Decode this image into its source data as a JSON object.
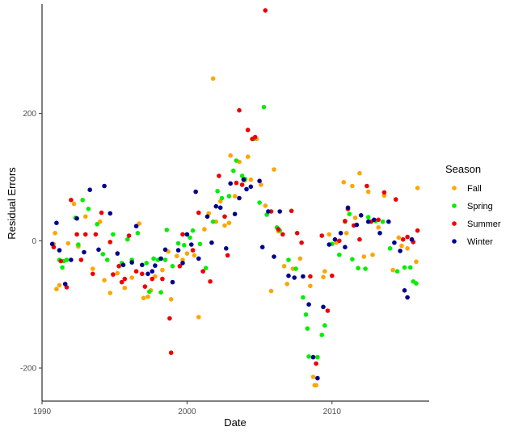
{
  "chart_data": {
    "type": "scatter",
    "title": "",
    "xlabel": "Date",
    "ylabel": "Residual Errors",
    "xlim": [
      1990.0,
      2016.7
    ],
    "ylim": [
      -252,
      372
    ],
    "x_ticks": [
      1990,
      2000,
      2010
    ],
    "y_ticks": [
      -200,
      0,
      200
    ],
    "grid": false,
    "legend": {
      "title": "Season",
      "placement": "right"
    },
    "series": [
      {
        "name": "Fall",
        "color": "#FFA500",
        "points": [
          [
            1990.8,
            -5
          ],
          [
            1990.9,
            12
          ],
          [
            1991.0,
            -76
          ],
          [
            1991.2,
            -70
          ],
          [
            1991.8,
            -4
          ],
          [
            1992.2,
            58
          ],
          [
            1992.5,
            -9
          ],
          [
            1993.0,
            38
          ],
          [
            1993.5,
            -44
          ],
          [
            1994.0,
            30
          ],
          [
            1994.3,
            -62
          ],
          [
            1994.7,
            -82
          ],
          [
            1995.2,
            -51
          ],
          [
            1995.7,
            -74
          ],
          [
            1996.2,
            -58
          ],
          [
            1996.7,
            27
          ],
          [
            1997.0,
            -90
          ],
          [
            1997.3,
            -88
          ],
          [
            1997.5,
            -78
          ],
          [
            1997.8,
            -56
          ],
          [
            1998.3,
            -46
          ],
          [
            1998.7,
            -17
          ],
          [
            1998.9,
            -92
          ],
          [
            1999.3,
            -24
          ],
          [
            1999.7,
            -30
          ],
          [
            2000.0,
            -20
          ],
          [
            2000.5,
            -23
          ],
          [
            2000.8,
            -120
          ],
          [
            2001.2,
            18
          ],
          [
            2001.5,
            43
          ],
          [
            2001.8,
            255
          ],
          [
            2002.0,
            30
          ],
          [
            2002.3,
            62
          ],
          [
            2002.6,
            24
          ],
          [
            2002.9,
            28
          ],
          [
            2003.0,
            134
          ],
          [
            2003.3,
            70
          ],
          [
            2003.6,
            124
          ],
          [
            2004.0,
            95
          ],
          [
            2004.2,
            132
          ],
          [
            2004.4,
            96
          ],
          [
            2004.8,
            160
          ],
          [
            2005.1,
            88
          ],
          [
            2005.4,
            55
          ],
          [
            2005.8,
            -79
          ],
          [
            2006.0,
            112
          ],
          [
            2006.3,
            15
          ],
          [
            2006.7,
            -40
          ],
          [
            2006.9,
            -68
          ],
          [
            2007.3,
            -44
          ],
          [
            2007.8,
            -28
          ],
          [
            2008.5,
            -71
          ],
          [
            2008.7,
            -214
          ],
          [
            2008.8,
            -227
          ],
          [
            2008.9,
            -227
          ],
          [
            2009.4,
            -57
          ],
          [
            2009.5,
            -48
          ],
          [
            2009.8,
            10
          ],
          [
            2010.3,
            -3
          ],
          [
            2010.8,
            92
          ],
          [
            2011.0,
            12
          ],
          [
            2011.4,
            86
          ],
          [
            2011.6,
            36
          ],
          [
            2011.9,
            106
          ],
          [
            2012.2,
            -25
          ],
          [
            2012.5,
            77
          ],
          [
            2012.8,
            -22
          ],
          [
            2013.2,
            21
          ],
          [
            2013.6,
            71
          ],
          [
            2014.2,
            -46
          ],
          [
            2014.6,
            5
          ],
          [
            2014.8,
            -8
          ],
          [
            2015.2,
            -12
          ],
          [
            2015.5,
            2
          ],
          [
            2015.8,
            -33
          ],
          [
            2015.9,
            83
          ]
        ]
      },
      {
        "name": "Spring",
        "color": "#00EE00",
        "points": [
          [
            1991.2,
            -30
          ],
          [
            1991.4,
            -42
          ],
          [
            1991.5,
            -32
          ],
          [
            1991.7,
            -30
          ],
          [
            1992.3,
            36
          ],
          [
            1992.5,
            -6
          ],
          [
            1992.8,
            64
          ],
          [
            1993.2,
            50
          ],
          [
            1993.8,
            26
          ],
          [
            1994.2,
            -21
          ],
          [
            1994.5,
            -30
          ],
          [
            1994.9,
            10
          ],
          [
            1995.5,
            -35
          ],
          [
            1995.9,
            2
          ],
          [
            1996.2,
            -30
          ],
          [
            1996.6,
            12
          ],
          [
            1997.2,
            -35
          ],
          [
            1997.4,
            -80
          ],
          [
            1997.7,
            -28
          ],
          [
            1998.0,
            -30
          ],
          [
            1998.2,
            -81
          ],
          [
            1998.5,
            -30
          ],
          [
            1998.6,
            17
          ],
          [
            1999.0,
            -40
          ],
          [
            1999.4,
            -4
          ],
          [
            1999.8,
            -7
          ],
          [
            2000.2,
            5
          ],
          [
            2000.4,
            16
          ],
          [
            2000.9,
            -5
          ],
          [
            2001.3,
            -43
          ],
          [
            2001.8,
            30
          ],
          [
            2002.1,
            78
          ],
          [
            2002.4,
            67
          ],
          [
            2002.9,
            70
          ],
          [
            2003.2,
            110
          ],
          [
            2003.4,
            126
          ],
          [
            2003.8,
            102
          ],
          [
            2004.0,
            97
          ],
          [
            2004.6,
            160
          ],
          [
            2005.0,
            60
          ],
          [
            2005.3,
            210
          ],
          [
            2005.5,
            41
          ],
          [
            2006.2,
            21
          ],
          [
            2006.4,
            16
          ],
          [
            2007.0,
            -30
          ],
          [
            2007.5,
            -44
          ],
          [
            2008.0,
            -89
          ],
          [
            2008.2,
            -116
          ],
          [
            2008.3,
            -138
          ],
          [
            2008.4,
            -182
          ],
          [
            2009.0,
            -183
          ],
          [
            2009.3,
            -148
          ],
          [
            2009.5,
            -133
          ],
          [
            2010.0,
            -5
          ],
          [
            2010.5,
            -22
          ],
          [
            2010.9,
            30
          ],
          [
            2011.2,
            42
          ],
          [
            2011.4,
            -29
          ],
          [
            2011.8,
            -43
          ],
          [
            2012.3,
            -44
          ],
          [
            2012.5,
            37
          ],
          [
            2013.0,
            31
          ],
          [
            2013.5,
            30
          ],
          [
            2014.0,
            -12
          ],
          [
            2014.5,
            -48
          ],
          [
            2015.0,
            -42
          ],
          [
            2015.4,
            -42
          ],
          [
            2015.6,
            -64
          ],
          [
            2015.8,
            -67
          ]
        ]
      },
      {
        "name": "Summer",
        "color": "#EE0000",
        "points": [
          [
            1990.8,
            -10
          ],
          [
            1991.3,
            -32
          ],
          [
            1991.7,
            -73
          ],
          [
            1992.0,
            64
          ],
          [
            1992.4,
            10
          ],
          [
            1992.7,
            -30
          ],
          [
            1993.0,
            10
          ],
          [
            1993.5,
            -52
          ],
          [
            1993.7,
            10
          ],
          [
            1994.1,
            44
          ],
          [
            1994.7,
            -2
          ],
          [
            1994.9,
            -53
          ],
          [
            1995.3,
            -40
          ],
          [
            1995.5,
            -65
          ],
          [
            1995.7,
            -60
          ],
          [
            1996.0,
            8
          ],
          [
            1996.5,
            -48
          ],
          [
            1996.9,
            -52
          ],
          [
            1997.1,
            -72
          ],
          [
            1997.6,
            -60
          ],
          [
            1998.3,
            -60
          ],
          [
            1998.8,
            -122
          ],
          [
            1998.9,
            -176
          ],
          [
            1999.5,
            -40
          ],
          [
            1999.7,
            10
          ],
          [
            2000.4,
            -15
          ],
          [
            2000.8,
            44
          ],
          [
            2001.1,
            -48
          ],
          [
            2001.6,
            -64
          ],
          [
            2002.2,
            102
          ],
          [
            2002.6,
            38
          ],
          [
            2002.8,
            -23
          ],
          [
            2003.4,
            91
          ],
          [
            2003.6,
            205
          ],
          [
            2003.8,
            88
          ],
          [
            2004.2,
            174
          ],
          [
            2004.5,
            160
          ],
          [
            2004.7,
            163
          ],
          [
            2005.4,
            362
          ],
          [
            2005.8,
            46
          ],
          [
            2006.3,
            18
          ],
          [
            2006.6,
            10
          ],
          [
            2007.2,
            47
          ],
          [
            2007.6,
            12
          ],
          [
            2007.9,
            -3
          ],
          [
            2008.5,
            -56
          ],
          [
            2008.9,
            -193
          ],
          [
            2009.3,
            8
          ],
          [
            2009.7,
            -110
          ],
          [
            2010.0,
            -55
          ],
          [
            2010.5,
            0
          ],
          [
            2010.9,
            31
          ],
          [
            2011.1,
            50
          ],
          [
            2011.5,
            24
          ],
          [
            2011.9,
            2
          ],
          [
            2012.4,
            86
          ],
          [
            2012.7,
            30
          ],
          [
            2013.2,
            33
          ],
          [
            2013.6,
            76
          ],
          [
            2014.4,
            65
          ],
          [
            2014.9,
            2
          ],
          [
            2015.2,
            6
          ],
          [
            2015.6,
            -2
          ],
          [
            2015.9,
            16
          ]
        ]
      },
      {
        "name": "Winter",
        "color": "#00008B",
        "points": [
          [
            1990.7,
            -5
          ],
          [
            1991.0,
            28
          ],
          [
            1991.2,
            -15
          ],
          [
            1991.6,
            -68
          ],
          [
            1992.0,
            -30
          ],
          [
            1992.4,
            35
          ],
          [
            1992.9,
            -18
          ],
          [
            1993.3,
            80
          ],
          [
            1993.9,
            -14
          ],
          [
            1994.3,
            86
          ],
          [
            1994.7,
            43
          ],
          [
            1995.2,
            -20
          ],
          [
            1995.6,
            -38
          ],
          [
            1996.2,
            -34
          ],
          [
            1996.5,
            23
          ],
          [
            1996.9,
            -38
          ],
          [
            1997.3,
            -52
          ],
          [
            1997.6,
            -48
          ],
          [
            1997.8,
            -39
          ],
          [
            1998.2,
            -28
          ],
          [
            1998.5,
            -14
          ],
          [
            1999.0,
            -65
          ],
          [
            1999.4,
            -15
          ],
          [
            1999.7,
            -35
          ],
          [
            2000.0,
            10
          ],
          [
            2000.3,
            -6
          ],
          [
            2000.6,
            77
          ],
          [
            2000.8,
            -28
          ],
          [
            2001.4,
            38
          ],
          [
            2001.7,
            -3
          ],
          [
            2002.0,
            54
          ],
          [
            2002.3,
            52
          ],
          [
            2002.7,
            -12
          ],
          [
            2003.0,
            90
          ],
          [
            2003.3,
            42
          ],
          [
            2003.6,
            67
          ],
          [
            2003.9,
            96
          ],
          [
            2004.1,
            81
          ],
          [
            2004.4,
            85
          ],
          [
            2005.0,
            94
          ],
          [
            2005.2,
            -10
          ],
          [
            2005.6,
            46
          ],
          [
            2006.0,
            -25
          ],
          [
            2006.4,
            46
          ],
          [
            2007.0,
            -55
          ],
          [
            2007.4,
            -58
          ],
          [
            2008.0,
            -56
          ],
          [
            2008.4,
            -100
          ],
          [
            2008.7,
            -183
          ],
          [
            2009.0,
            -216
          ],
          [
            2009.4,
            -104
          ],
          [
            2009.8,
            -6
          ],
          [
            2010.2,
            2
          ],
          [
            2010.6,
            12
          ],
          [
            2010.9,
            -10
          ],
          [
            2011.1,
            52
          ],
          [
            2011.7,
            25
          ],
          [
            2012.0,
            40
          ],
          [
            2012.5,
            30
          ],
          [
            2012.9,
            33
          ],
          [
            2013.3,
            12
          ],
          [
            2013.9,
            30
          ],
          [
            2014.3,
            -3
          ],
          [
            2014.7,
            -16
          ],
          [
            2015.0,
            -78
          ],
          [
            2015.2,
            -89
          ],
          [
            2015.5,
            2
          ]
        ]
      }
    ]
  }
}
